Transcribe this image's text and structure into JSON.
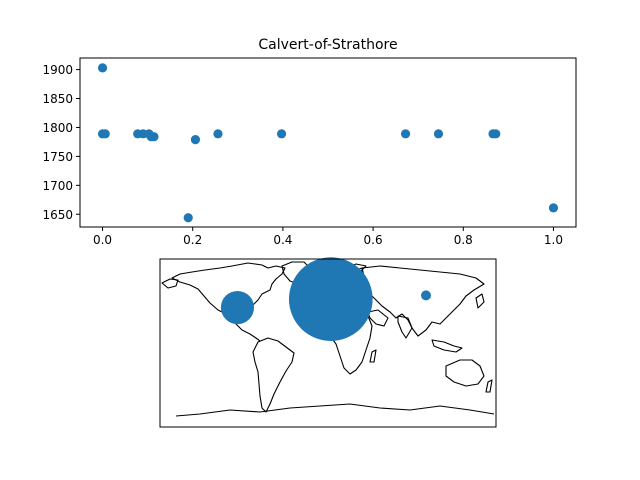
{
  "chart_data": [
    {
      "type": "scatter",
      "title": "Calvert-of-Strathore",
      "xlabel": "",
      "ylabel": "",
      "xlim": [
        -0.05,
        1.05
      ],
      "ylim": [
        1628,
        1920
      ],
      "x_ticks": [
        "0.0",
        "0.2",
        "0.4",
        "0.6",
        "0.8",
        "1.0"
      ],
      "y_ticks": [
        "1650",
        "1700",
        "1750",
        "1800",
        "1850",
        "1900"
      ],
      "marker_color": "#1f77b4",
      "grid": false,
      "points": [
        {
          "x": 0.0,
          "y": 1903
        },
        {
          "x": 0.0,
          "y": 1789
        },
        {
          "x": 0.006,
          "y": 1789
        },
        {
          "x": 0.078,
          "y": 1789
        },
        {
          "x": 0.09,
          "y": 1789
        },
        {
          "x": 0.103,
          "y": 1789
        },
        {
          "x": 0.108,
          "y": 1784
        },
        {
          "x": 0.114,
          "y": 1784
        },
        {
          "x": 0.19,
          "y": 1644
        },
        {
          "x": 0.206,
          "y": 1779
        },
        {
          "x": 0.256,
          "y": 1789
        },
        {
          "x": 0.397,
          "y": 1789
        },
        {
          "x": 0.672,
          "y": 1789
        },
        {
          "x": 0.745,
          "y": 1789
        },
        {
          "x": 0.866,
          "y": 1789
        },
        {
          "x": 0.872,
          "y": 1789
        },
        {
          "x": 1.0,
          "y": 1661
        }
      ]
    },
    {
      "type": "scatter",
      "subtype": "world-map-bubbles",
      "title": "",
      "projection": "plate-carree",
      "lon_range": [
        -180,
        180
      ],
      "lat_range": [
        -90,
        90
      ],
      "marker_color": "#1f77b4",
      "points": [
        {
          "lon": 3,
          "lat": 47,
          "size": 70
        },
        {
          "lon": -97,
          "lat": 38,
          "size": 11
        },
        {
          "lon": 105,
          "lat": 51,
          "size": 1
        }
      ]
    }
  ]
}
